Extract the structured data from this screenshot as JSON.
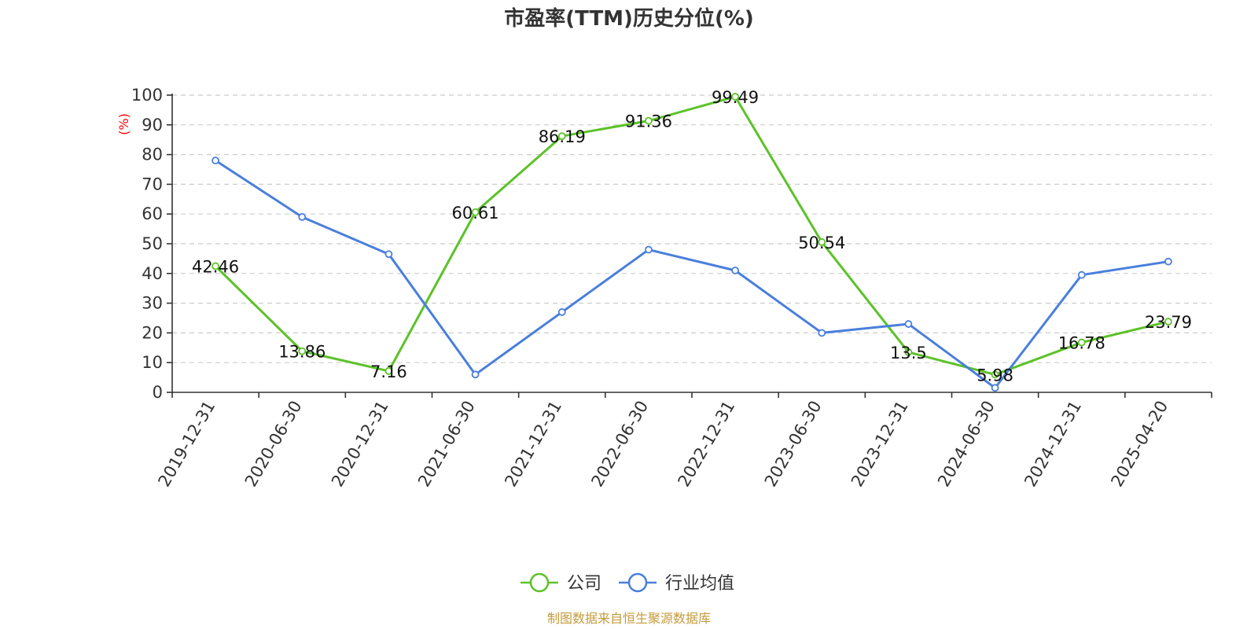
{
  "chart_data": {
    "type": "line",
    "title": "市盈率(TTM)历史分位(%)",
    "ylabel": "(%)",
    "ylim": [
      0,
      100
    ],
    "yticks": [
      0,
      10,
      20,
      30,
      40,
      50,
      60,
      70,
      80,
      90,
      100
    ],
    "grid": true,
    "legend_position": "bottom",
    "categories": [
      "2019-12-31",
      "2020-06-30",
      "2020-12-31",
      "2021-06-30",
      "2021-12-31",
      "2022-06-30",
      "2022-12-31",
      "2023-06-30",
      "2023-12-31",
      "2024-06-30",
      "2024-12-31",
      "2025-04-20"
    ],
    "series": [
      {
        "name": "公司",
        "color": "#5cc229",
        "show_labels": true,
        "values": [
          42.46,
          13.86,
          7.16,
          60.61,
          86.19,
          91.36,
          99.49,
          50.54,
          13.5,
          5.98,
          16.78,
          23.79
        ],
        "labels": [
          "42.46",
          "13.86",
          "7.16",
          "60.61",
          "86.19",
          "91.36",
          "99.49",
          "50.54",
          "13.5",
          "5.98",
          "16.78",
          "23.79"
        ]
      },
      {
        "name": "行业均值",
        "color": "#4a7fdc",
        "show_labels": false,
        "values": [
          78,
          59,
          46.5,
          6,
          27,
          48,
          41,
          20,
          23,
          1.5,
          39.5,
          44
        ]
      }
    ],
    "source_note": "制图数据来自恒生聚源数据库",
    "colors": {
      "title": "#333333",
      "ylabel": "#ff0000",
      "source": "#c49a3c",
      "axis": "#333333",
      "grid": "#cccccc"
    }
  }
}
